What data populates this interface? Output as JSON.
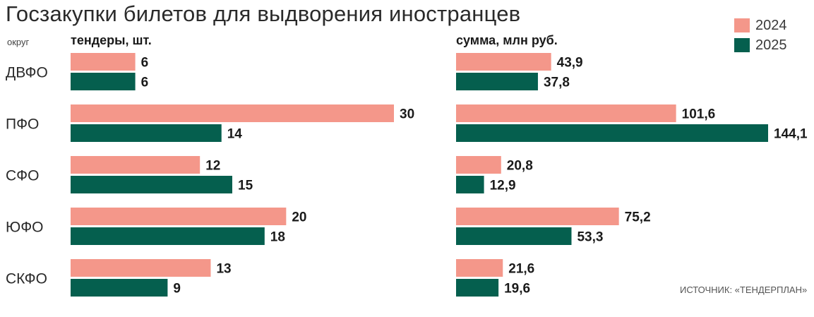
{
  "title": "Госзакупки билетов для выдворения иностранцев",
  "source": "ИСТОЧНИК: «ТЕНДЕРПЛАН»",
  "district_header": "округ",
  "colors": {
    "2024": "#f4978a",
    "2025": "#055f4e"
  },
  "chart_data": [
    {
      "type": "bar",
      "orientation": "horizontal",
      "title": "тендеры, шт.",
      "categories": [
        "ДВФО",
        "ПФО",
        "СФО",
        "ЮФО",
        "СКФО"
      ],
      "series": [
        {
          "name": "2024",
          "values": [
            6,
            30,
            12,
            20,
            13
          ],
          "labels": [
            "6",
            "30",
            "12",
            "20",
            "13"
          ]
        },
        {
          "name": "2025",
          "values": [
            6,
            14,
            15,
            18,
            9
          ],
          "labels": [
            "6",
            "14",
            "15",
            "18",
            "9"
          ]
        }
      ],
      "xlim": [
        0,
        30
      ],
      "grid": false,
      "legend": "top-right"
    },
    {
      "type": "bar",
      "orientation": "horizontal",
      "title": "сумма, млн руб.",
      "categories": [
        "ДВФО",
        "ПФО",
        "СФО",
        "ЮФО",
        "СКФО"
      ],
      "series": [
        {
          "name": "2024",
          "values": [
            43.9,
            101.6,
            20.8,
            75.2,
            21.6
          ],
          "labels": [
            "43,9",
            "101,6",
            "20,8",
            "75,2",
            "21,6"
          ]
        },
        {
          "name": "2025",
          "values": [
            37.8,
            144.1,
            12.9,
            53.3,
            19.6
          ],
          "labels": [
            "37,8",
            "144,1",
            "12,9",
            "53,3",
            "19,6"
          ]
        }
      ],
      "xlim": [
        0,
        144.1
      ],
      "grid": false
    }
  ]
}
